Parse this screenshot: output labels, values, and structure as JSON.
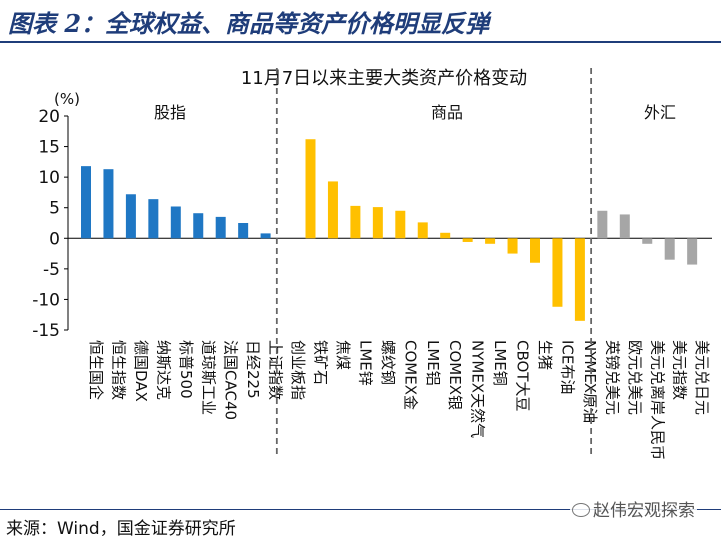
{
  "figure_title": "图表 2：全球权益、商品等资产价格明显反弹",
  "source": "来源：Wind，国金证券研究所",
  "watermark": "赵伟宏观探索",
  "chart_data": {
    "type": "bar",
    "title": "11月7日以来主要大类资产价格变动",
    "ylabel": "(%)",
    "ylim": [
      -15,
      20
    ],
    "yticks": [
      20,
      15,
      10,
      5,
      0,
      -5,
      -10,
      -15
    ],
    "grid": false,
    "groups": [
      {
        "name": "股指",
        "color": "#1f77c4",
        "categories": [
          "恒生国企",
          "恒生指数",
          "德国DAX",
          "纳斯达克",
          "标普500",
          "道琼斯工业",
          "法国CAC40",
          "日经225",
          "上证指数"
        ],
        "values": [
          11.8,
          11.3,
          7.2,
          6.4,
          5.2,
          4.1,
          3.5,
          2.5,
          0.8
        ]
      },
      {
        "name": "商品",
        "color": "#ffc000",
        "categories": [
          "创业板指",
          "铁矿石",
          "焦煤",
          "LME锌",
          "螺纹钢",
          "COMEX金",
          "LME铝",
          "COMEX银",
          "NYMEX天然气",
          "LME铜",
          "CBOT大豆",
          "生猪",
          "ICE布油",
          "NYMEX原油"
        ],
        "values": [
          0.0,
          16.2,
          9.3,
          5.3,
          5.1,
          4.5,
          2.6,
          0.9,
          -0.6,
          -0.9,
          -2.5,
          -4.0,
          -11.2,
          -13.5
        ]
      },
      {
        "name": "外汇",
        "color": "#a6a6a6",
        "categories": [
          "英镑兑美元",
          "欧元兑美元",
          "美元兑离岸人民币",
          "美元指数",
          "美元兑日元"
        ],
        "values": [
          4.5,
          3.9,
          -0.9,
          -3.5,
          -4.3
        ]
      }
    ]
  }
}
